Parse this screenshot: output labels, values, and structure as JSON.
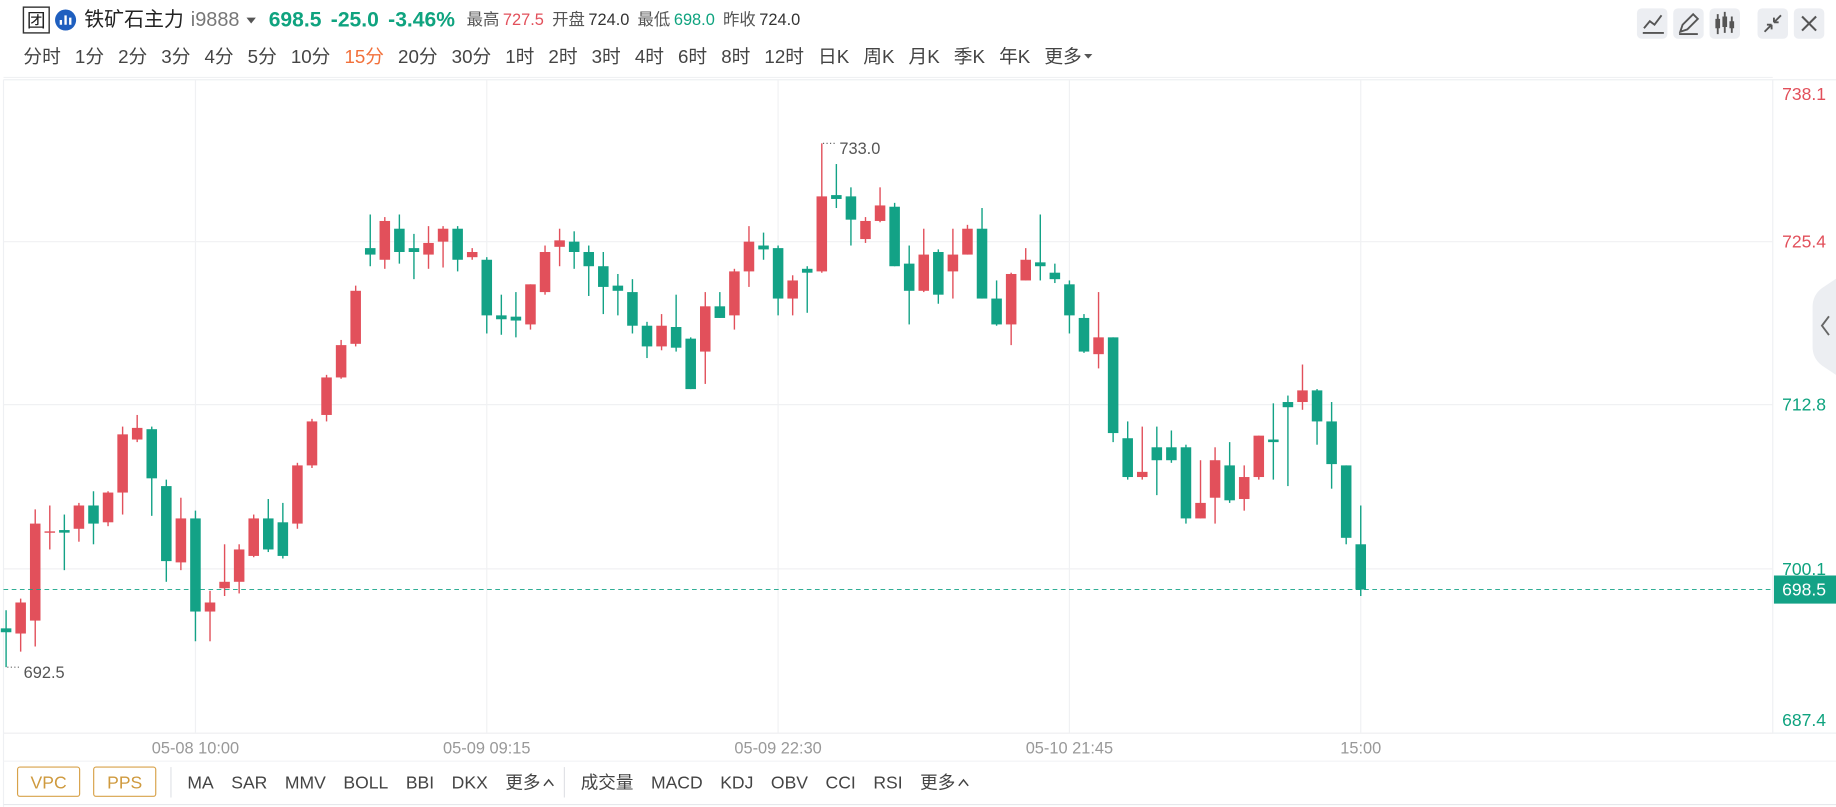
{
  "header": {
    "badge": "团",
    "name": "铁矿石主力",
    "code": "i9888",
    "price": "698.5",
    "change": "-25.0",
    "change_pct": "-3.46%",
    "stats": [
      {
        "label": "最高",
        "value": "727.5"
      },
      {
        "label": "开盘",
        "value": "724.0"
      },
      {
        "label": "最低",
        "value": "698.0"
      },
      {
        "label": "昨收",
        "value": "724.0"
      }
    ]
  },
  "periods": [
    "分时",
    "1分",
    "2分",
    "3分",
    "4分",
    "5分",
    "10分",
    "15分",
    "20分",
    "30分",
    "1时",
    "2时",
    "3时",
    "4时",
    "6时",
    "8时",
    "12时",
    "日K",
    "周K",
    "月K",
    "季K",
    "年K",
    "更多"
  ],
  "active_period": 7,
  "chart_data": {
    "type": "candlestick",
    "categories": [
      null,
      null,
      null,
      null,
      null,
      null,
      null,
      null,
      null,
      null,
      null,
      null,
      null,
      "05-08 10:00",
      null,
      null,
      null,
      null,
      null,
      null,
      null,
      null,
      null,
      null,
      null,
      null,
      null,
      null,
      null,
      null,
      null,
      null,
      null,
      "05-09 09:15",
      null,
      null,
      null,
      null,
      null,
      null,
      null,
      null,
      null,
      null,
      null,
      null,
      null,
      null,
      null,
      null,
      null,
      null,
      null,
      "05-09 22:30",
      null,
      null,
      null,
      null,
      null,
      null,
      null,
      null,
      null,
      null,
      null,
      null,
      null,
      null,
      null,
      null,
      null,
      null,
      null,
      "05-10 21:45",
      null,
      null,
      null,
      null,
      null,
      null,
      null,
      null,
      null,
      null,
      null,
      null,
      null,
      null,
      null,
      null,
      null,
      null,
      null,
      "15:00"
    ],
    "open": [
      695.5,
      695.1,
      696.1,
      702.9,
      703.1,
      703.2,
      705.0,
      703.7,
      706.0,
      710.1,
      710.9,
      706.5,
      700.6,
      704.0,
      696.8,
      698.6,
      699.1,
      701.1,
      704.0,
      703.7,
      703.6,
      708.1,
      712.0,
      714.9,
      717.5,
      724.9,
      724.0,
      726.4,
      724.9,
      724.4,
      725.4,
      726.4,
      724.2,
      724.0,
      719.7,
      719.6,
      719.0,
      721.5,
      725.0,
      725.4,
      724.6,
      723.5,
      722.0,
      721.5,
      718.9,
      717.3,
      718.8,
      717.9,
      716.9,
      720.4,
      719.7,
      723.1,
      725.1,
      724.9,
      721.0,
      723.3,
      723.1,
      729.0,
      728.9,
      725.6,
      727.0,
      728.1,
      723.7,
      721.6,
      724.6,
      723.1,
      724.4,
      726.4,
      721.0,
      719.0,
      722.4,
      723.8,
      723.0,
      722.1,
      719.5,
      716.7,
      718.0,
      710.2,
      707.2,
      709.5,
      709.5,
      709.5,
      704.0,
      705.6,
      708.1,
      705.5,
      707.2,
      710.1,
      713.0,
      713.0,
      713.9,
      711.5,
      708.1,
      702.0
    ],
    "high": [
      696.9,
      697.8,
      704.7,
      705.0,
      704.3,
      705.2,
      706.1,
      706.1,
      711.1,
      712.0,
      711.1,
      707.0,
      705.6,
      704.6,
      698.4,
      702.0,
      702.0,
      704.3,
      705.5,
      705.2,
      708.3,
      711.7,
      715.1,
      717.8,
      722.0,
      727.5,
      727.3,
      727.5,
      726.0,
      726.6,
      726.6,
      726.6,
      724.9,
      724.2,
      721.3,
      721.5,
      722.1,
      725.1,
      726.4,
      726.2,
      725.1,
      724.6,
      722.9,
      722.5,
      719.2,
      719.8,
      721.3,
      718.0,
      721.5,
      721.5,
      723.3,
      726.6,
      726.1,
      725.1,
      722.8,
      723.5,
      733.0,
      731.4,
      729.6,
      727.3,
      729.6,
      728.4,
      725.1,
      726.4,
      724.8,
      726.4,
      726.7,
      728.0,
      722.4,
      723.0,
      724.9,
      727.5,
      723.7,
      722.4,
      719.8,
      721.5,
      718.0,
      711.5,
      711.1,
      711.1,
      710.8,
      709.7,
      708.5,
      709.5,
      709.9,
      708.1,
      710.4,
      712.9,
      713.5,
      715.9,
      714.0,
      713.0,
      708.1,
      705.0
    ],
    "low": [
      692.5,
      693.7,
      694.1,
      701.6,
      700.0,
      702.2,
      702.0,
      703.4,
      704.3,
      709.9,
      704.2,
      699.1,
      700.0,
      694.5,
      694.5,
      698.0,
      698.2,
      701.0,
      701.4,
      700.9,
      703.2,
      707.9,
      711.5,
      714.8,
      717.3,
      723.5,
      723.3,
      723.7,
      722.5,
      723.3,
      723.4,
      723.1,
      724.0,
      718.3,
      718.2,
      718.0,
      718.6,
      721.3,
      723.5,
      723.3,
      721.2,
      719.8,
      719.7,
      718.3,
      716.4,
      717.0,
      716.9,
      714.0,
      714.4,
      719.5,
      718.6,
      721.9,
      724.0,
      719.7,
      719.7,
      719.9,
      723.0,
      728.0,
      725.1,
      725.3,
      726.9,
      723.5,
      719.0,
      721.5,
      720.6,
      721.0,
      724.4,
      721.0,
      718.9,
      717.4,
      722.4,
      722.4,
      722.2,
      718.3,
      716.8,
      715.6,
      709.9,
      707.0,
      707.0,
      705.8,
      708.3,
      703.6,
      704.0,
      703.6,
      705.2,
      704.6,
      707.0,
      707.0,
      706.5,
      712.4,
      709.7,
      706.3,
      702.0,
      698.0
    ],
    "close": [
      695.2,
      697.5,
      703.6,
      703.0,
      702.9,
      705.0,
      703.6,
      706.0,
      710.5,
      711.0,
      707.1,
      700.7,
      704.0,
      696.8,
      697.5,
      699.1,
      701.6,
      704.0,
      701.6,
      701.1,
      708.1,
      711.5,
      714.9,
      717.4,
      721.6,
      724.4,
      727.0,
      724.6,
      724.6,
      725.3,
      726.4,
      724.0,
      724.6,
      719.7,
      719.4,
      719.3,
      722.1,
      724.6,
      725.5,
      724.6,
      723.5,
      721.9,
      721.6,
      718.9,
      717.3,
      718.9,
      717.2,
      714.0,
      720.4,
      719.5,
      723.1,
      725.4,
      724.8,
      721.0,
      722.4,
      723.0,
      728.9,
      728.7,
      727.1,
      727.0,
      728.2,
      723.5,
      721.6,
      724.4,
      721.3,
      724.4,
      726.4,
      721.0,
      719.0,
      722.9,
      724.0,
      723.5,
      722.5,
      719.7,
      716.9,
      718.0,
      710.6,
      707.2,
      707.6,
      708.5,
      708.5,
      704.0,
      705.2,
      708.5,
      705.4,
      707.2,
      710.4,
      709.9,
      712.6,
      713.9,
      711.5,
      708.2,
      702.5,
      698.5
    ],
    "up_color": "#e2505b",
    "down_color": "#13a286",
    "ylim": [
      687.4,
      738.1
    ],
    "yticks": [
      687.4,
      700.1,
      712.8,
      725.4,
      738.1
    ],
    "grid": true,
    "last_price": 698.5,
    "high_label": {
      "value": 733,
      "label": "733.0"
    },
    "low_label": 692.5
  },
  "indicators": {
    "special": [
      "VPC",
      "PPS"
    ],
    "main": [
      "MA",
      "SAR",
      "MMV",
      "BOLL",
      "BBI",
      "DKX"
    ],
    "main_more": "更多",
    "sub": [
      "成交量",
      "MACD",
      "KDJ",
      "OBV",
      "CCI",
      "RSI"
    ],
    "sub_more": "更多"
  }
}
